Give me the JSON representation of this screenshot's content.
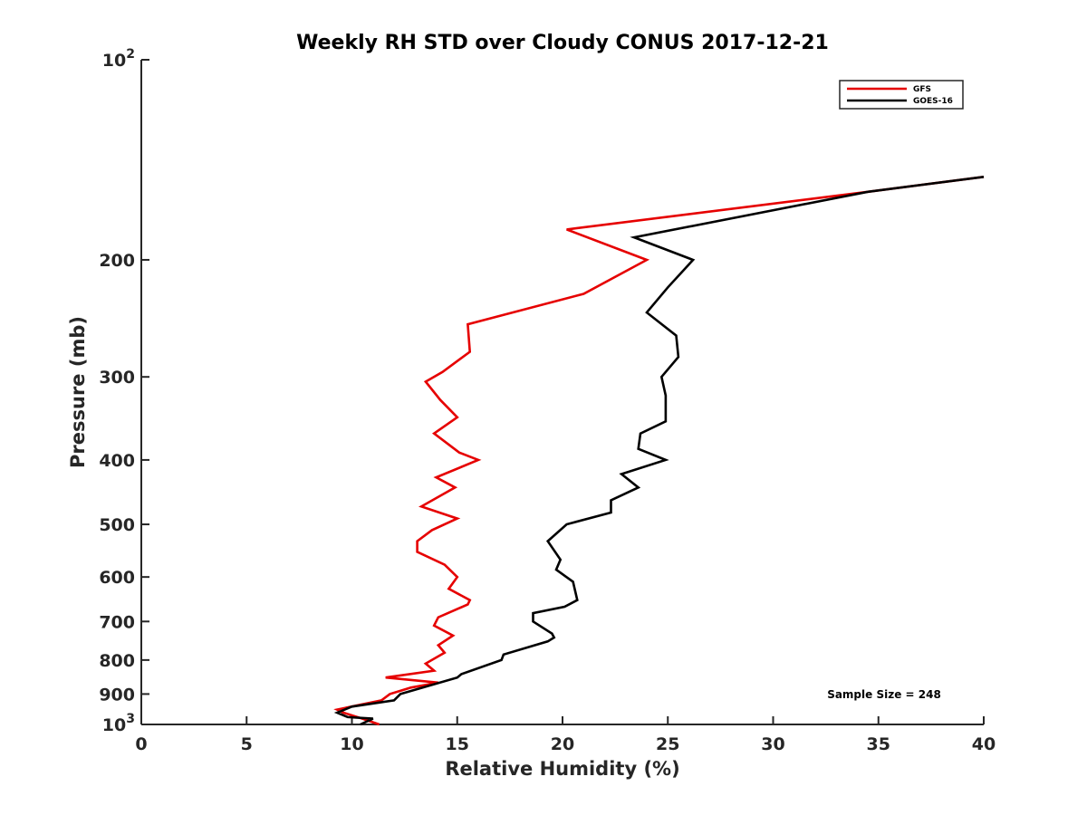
{
  "chart_data": {
    "type": "line",
    "title": "Weekly RH STD over Cloudy CONUS 2017-12-21",
    "xlabel": "Relative Humidity (%)",
    "ylabel": "Pressure (mb)",
    "xlim": [
      0,
      40
    ],
    "ylim": [
      100,
      1000
    ],
    "yscale": "log",
    "y_reversed": true,
    "x_ticks": [
      "0",
      "5",
      "10",
      "15",
      "20",
      "25",
      "30",
      "35",
      "40"
    ],
    "y_ticks": [
      {
        "value": 100,
        "base": "10",
        "exp": "2"
      },
      {
        "value": 200,
        "label": "200"
      },
      {
        "value": 300,
        "label": "300"
      },
      {
        "value": 400,
        "label": "400"
      },
      {
        "value": 500,
        "label": "500"
      },
      {
        "value": 600,
        "label": "600"
      },
      {
        "value": 700,
        "label": "700"
      },
      {
        "value": 800,
        "label": "800"
      },
      {
        "value": 900,
        "label": "900"
      },
      {
        "value": 1000,
        "base": "10",
        "exp": "3"
      }
    ],
    "legend_position": "top-right",
    "grid": false,
    "series": [
      {
        "name": "GFS",
        "color": "#e60000",
        "points": [
          [
            40.0,
            150
          ],
          [
            34.5,
            158
          ],
          [
            20.2,
            180
          ],
          [
            24.0,
            200
          ],
          [
            21.0,
            225
          ],
          [
            15.5,
            250
          ],
          [
            15.6,
            275
          ],
          [
            14.3,
            295
          ],
          [
            13.5,
            305
          ],
          [
            14.2,
            325
          ],
          [
            15.0,
            345
          ],
          [
            13.9,
            365
          ],
          [
            15.1,
            390
          ],
          [
            16.0,
            400
          ],
          [
            14.0,
            425
          ],
          [
            14.9,
            440
          ],
          [
            13.3,
            470
          ],
          [
            15.0,
            490
          ],
          [
            13.8,
            510
          ],
          [
            13.1,
            530
          ],
          [
            13.1,
            550
          ],
          [
            14.4,
            575
          ],
          [
            15.0,
            600
          ],
          [
            14.6,
            625
          ],
          [
            15.6,
            650
          ],
          [
            15.5,
            660
          ],
          [
            14.1,
            690
          ],
          [
            13.9,
            710
          ],
          [
            14.8,
            735
          ],
          [
            14.1,
            760
          ],
          [
            14.4,
            780
          ],
          [
            13.5,
            810
          ],
          [
            13.9,
            830
          ],
          [
            11.6,
            850
          ],
          [
            14.1,
            865
          ],
          [
            12.8,
            880
          ],
          [
            11.8,
            900
          ],
          [
            11.4,
            920
          ],
          [
            9.3,
            950
          ],
          [
            9.6,
            960
          ],
          [
            10.5,
            980
          ],
          [
            11.3,
            1000
          ]
        ]
      },
      {
        "name": "GOES-16",
        "color": "#000000",
        "points": [
          [
            40.0,
            150
          ],
          [
            34.5,
            158
          ],
          [
            23.4,
            185
          ],
          [
            26.2,
            200
          ],
          [
            25.0,
            220
          ],
          [
            24.0,
            240
          ],
          [
            25.4,
            260
          ],
          [
            25.5,
            280
          ],
          [
            24.7,
            300
          ],
          [
            24.9,
            320
          ],
          [
            24.9,
            350
          ],
          [
            23.7,
            365
          ],
          [
            23.6,
            385
          ],
          [
            24.9,
            400
          ],
          [
            22.8,
            420
          ],
          [
            23.6,
            440
          ],
          [
            22.3,
            460
          ],
          [
            22.3,
            480
          ],
          [
            20.2,
            500
          ],
          [
            19.3,
            530
          ],
          [
            19.9,
            565
          ],
          [
            19.7,
            585
          ],
          [
            20.5,
            610
          ],
          [
            20.7,
            650
          ],
          [
            20.1,
            665
          ],
          [
            18.6,
            680
          ],
          [
            18.6,
            700
          ],
          [
            19.5,
            730
          ],
          [
            19.6,
            740
          ],
          [
            19.3,
            750
          ],
          [
            17.2,
            785
          ],
          [
            17.1,
            800
          ],
          [
            15.2,
            840
          ],
          [
            15.0,
            850
          ],
          [
            12.3,
            900
          ],
          [
            12.0,
            920
          ],
          [
            10.0,
            940
          ],
          [
            9.3,
            960
          ],
          [
            9.8,
            975
          ],
          [
            11.0,
            980
          ],
          [
            10.4,
            1000
          ]
        ]
      }
    ],
    "annotation": "Sample Size = 248"
  }
}
